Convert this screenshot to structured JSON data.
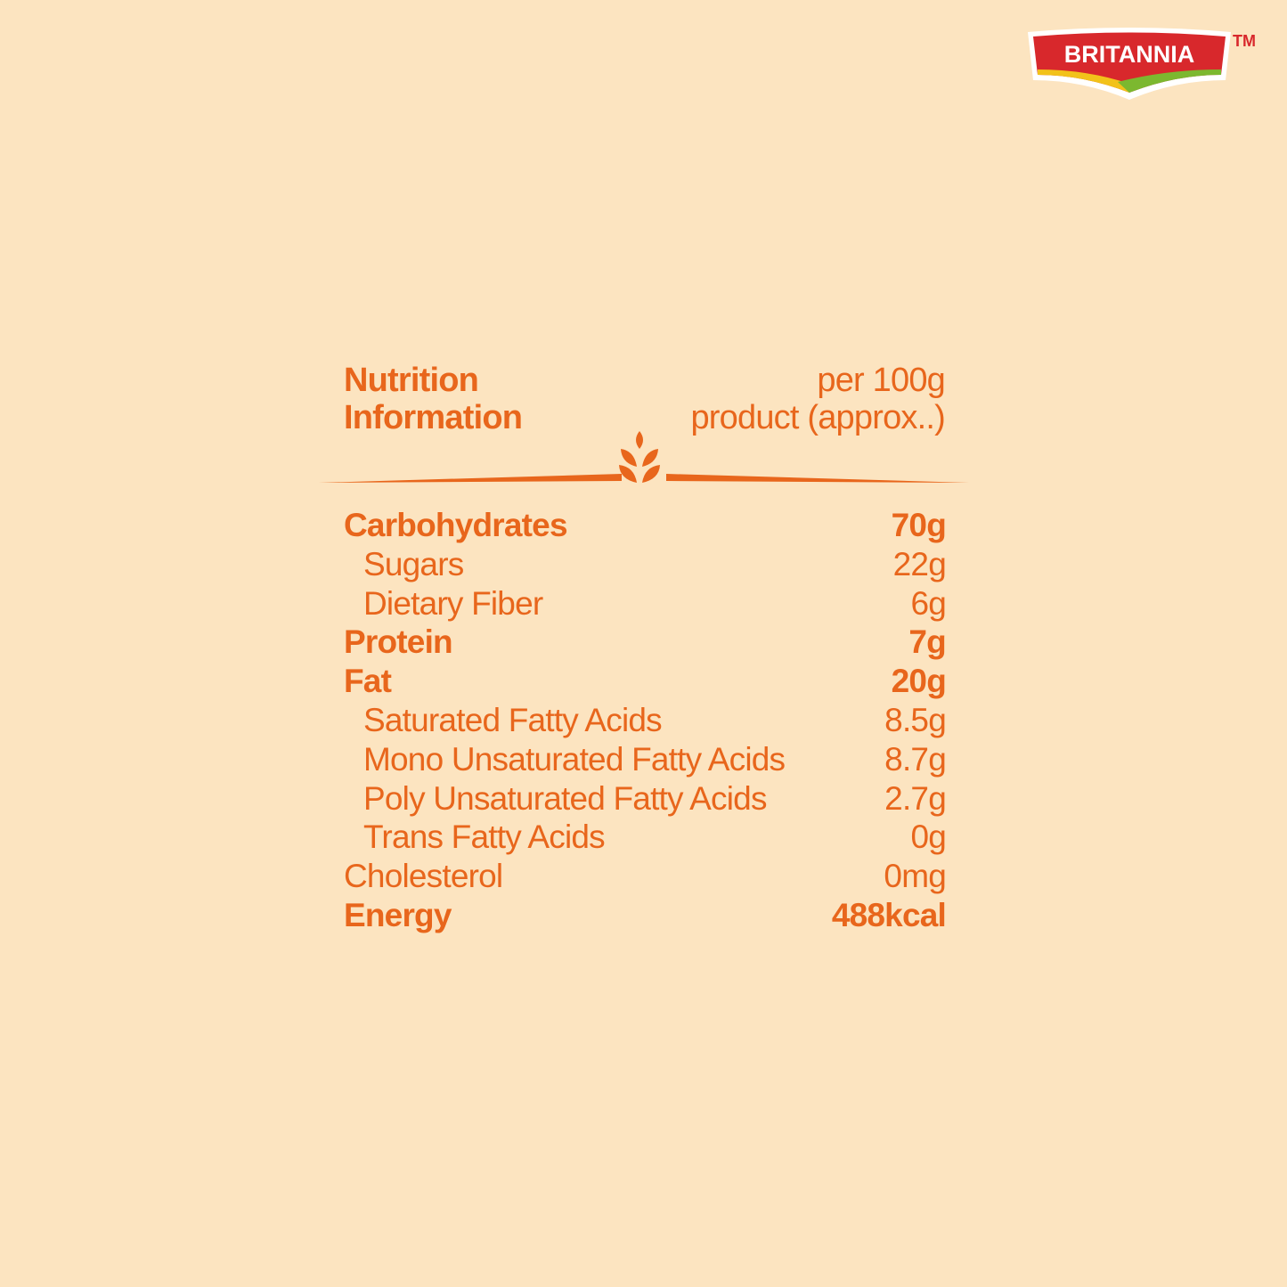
{
  "brand": {
    "name": "BRITANNIA",
    "trademark": "TM",
    "colors": {
      "red": "#d8282c",
      "yellow": "#f2c21a",
      "green": "#7cb82f"
    }
  },
  "colors": {
    "background": "#fce4c0",
    "text": "#e8661c"
  },
  "header": {
    "title_line1": "Nutrition",
    "title_line2": "Information",
    "basis_line1": "per 100g",
    "basis_line2": "product (approx..)"
  },
  "divider_icon": "wheat-icon",
  "nutrients": [
    {
      "name": "Carbohydrates",
      "value": "70g",
      "bold": true,
      "sub": false
    },
    {
      "name": "Sugars",
      "value": "22g",
      "bold": false,
      "sub": true
    },
    {
      "name": "Dietary Fiber",
      "value": "6g",
      "bold": false,
      "sub": true
    },
    {
      "name": "Protein",
      "value": "7g",
      "bold": true,
      "sub": false
    },
    {
      "name": "Fat",
      "value": "20g",
      "bold": true,
      "sub": false
    },
    {
      "name": "Saturated Fatty Acids",
      "value": "8.5g",
      "bold": false,
      "sub": true
    },
    {
      "name": "Mono Unsaturated Fatty Acids",
      "value": "8.7g",
      "bold": false,
      "sub": true
    },
    {
      "name": "Poly Unsaturated Fatty Acids",
      "value": "2.7g",
      "bold": false,
      "sub": true
    },
    {
      "name": "Trans Fatty Acids",
      "value": "0g",
      "bold": false,
      "sub": true
    },
    {
      "name": "Cholesterol",
      "value": "0mg",
      "bold": false,
      "sub": false
    },
    {
      "name": "Energy",
      "value": "488kcal",
      "bold": true,
      "sub": false
    }
  ]
}
